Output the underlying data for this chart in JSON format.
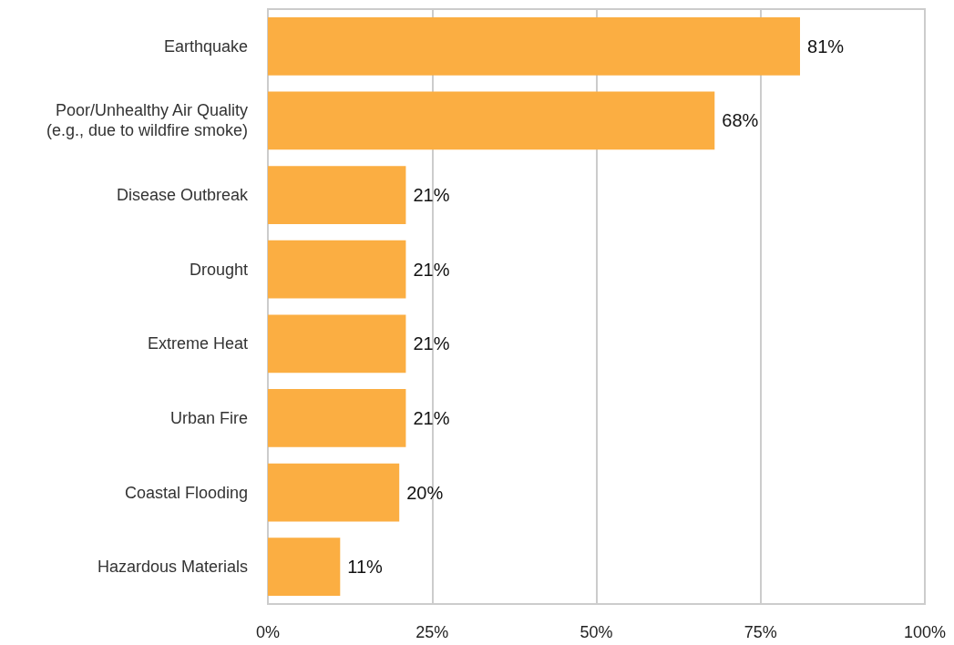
{
  "chart_data": {
    "type": "bar",
    "orientation": "horizontal",
    "categories": [
      "Earthquake",
      "Poor/Unhealthy Air Quality\n(e.g., due to wildfire smoke)",
      "Disease Outbreak",
      "Drought",
      "Extreme Heat",
      "Urban Fire",
      "Coastal Flooding",
      "Hazardous Materials"
    ],
    "values": [
      81,
      68,
      21,
      21,
      21,
      21,
      20,
      11
    ],
    "value_labels": [
      "81%",
      "68%",
      "21%",
      "21%",
      "21%",
      "21%",
      "20%",
      "11%"
    ],
    "color": "#fbae42",
    "xlim": [
      0,
      100
    ],
    "xticks": [
      {
        "value": 0,
        "label": "0%"
      },
      {
        "value": 25,
        "label": "25%"
      },
      {
        "value": 50,
        "label": "50%"
      },
      {
        "value": 75,
        "label": "75%"
      },
      {
        "value": 100,
        "label": "100%"
      }
    ],
    "grid": "x"
  }
}
